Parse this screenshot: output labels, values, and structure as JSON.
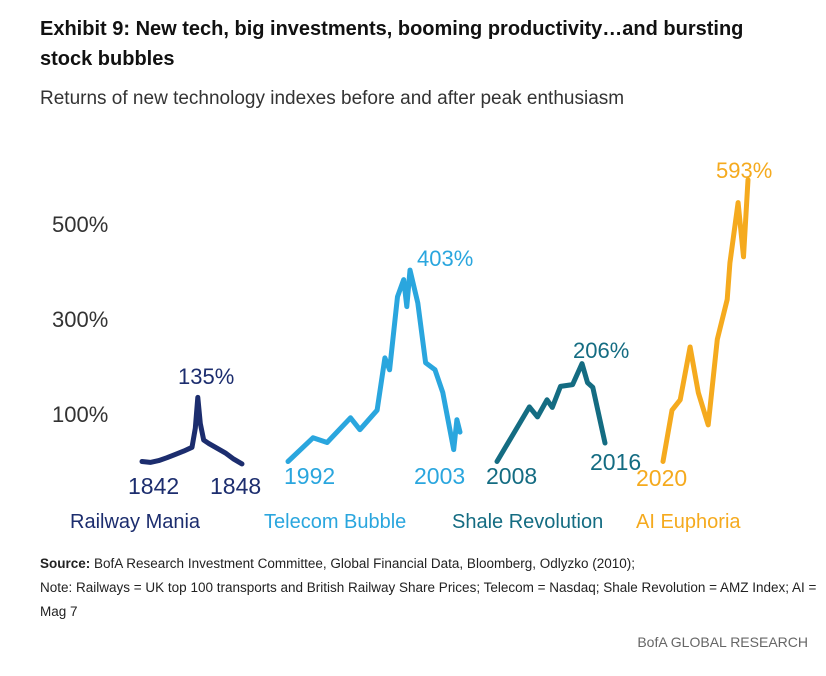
{
  "title": "Exhibit 9: New tech, big investments, booming productivity…and bursting stock bubbles",
  "subtitle": "Returns of new technology indexes before and after peak enthusiasm",
  "chart_data": {
    "type": "line",
    "title": "",
    "xlabel": "",
    "ylabel": "",
    "ylim": [
      0,
      600
    ],
    "yticks": [
      "100%",
      "300%",
      "500%"
    ],
    "ytick_values": [
      100,
      300,
      500
    ],
    "grid": false,
    "series": [
      {
        "name": "Railway Mania",
        "color": "#1c2d6e",
        "start_label": "1842",
        "end_label": "1848",
        "peak_label": "135%",
        "points": [
          [
            1842,
            0
          ],
          [
            1842.5,
            -2
          ],
          [
            1843,
            2
          ],
          [
            1843.5,
            8
          ],
          [
            1844,
            15
          ],
          [
            1844.5,
            22
          ],
          [
            1845,
            30
          ],
          [
            1845.2,
            70
          ],
          [
            1845.35,
            135
          ],
          [
            1845.5,
            80
          ],
          [
            1845.7,
            45
          ],
          [
            1846,
            38
          ],
          [
            1846.5,
            28
          ],
          [
            1847,
            18
          ],
          [
            1847.5,
            5
          ],
          [
            1848,
            -5
          ]
        ]
      },
      {
        "name": "Telecom Bubble",
        "color": "#2aa6de",
        "start_label": "1992",
        "end_label": "2003",
        "peak_label": "403%",
        "points": [
          [
            1992,
            0
          ],
          [
            1993.6,
            50
          ],
          [
            1994.5,
            40
          ],
          [
            1996,
            92
          ],
          [
            1996.6,
            67
          ],
          [
            1997.7,
            108
          ],
          [
            1998.2,
            218
          ],
          [
            1998.5,
            193
          ],
          [
            1999,
            347
          ],
          [
            1999.4,
            383
          ],
          [
            1999.6,
            326
          ],
          [
            1999.8,
            403
          ],
          [
            2000.3,
            334
          ],
          [
            2000.8,
            208
          ],
          [
            2001.4,
            193
          ],
          [
            2001.9,
            145
          ],
          [
            2002.6,
            25
          ],
          [
            2002.8,
            88
          ],
          [
            2003,
            62
          ]
        ]
      },
      {
        "name": "Shale Revolution",
        "color": "#146c82",
        "start_label": "2008",
        "end_label": "2016",
        "peak_label": "206%",
        "points": [
          [
            2008,
            0
          ],
          [
            2010.4,
            115
          ],
          [
            2011,
            94
          ],
          [
            2011.7,
            130
          ],
          [
            2012.1,
            114
          ],
          [
            2012.7,
            158
          ],
          [
            2013.6,
            162
          ],
          [
            2014.3,
            206
          ],
          [
            2014.7,
            166
          ],
          [
            2015.1,
            156
          ],
          [
            2016,
            39
          ]
        ]
      },
      {
        "name": "AI Euphoria",
        "color": "#f5aa1e",
        "start_label": "2020",
        "end_label": "",
        "peak_label": "593%",
        "points": [
          [
            2020,
            0
          ],
          [
            2020.5,
            108
          ],
          [
            2020.95,
            130
          ],
          [
            2021.5,
            241
          ],
          [
            2021.95,
            145
          ],
          [
            2022.5,
            77
          ],
          [
            2023,
            257
          ],
          [
            2023.55,
            341
          ],
          [
            2023.7,
            418
          ],
          [
            2024.15,
            545
          ],
          [
            2024.45,
            431
          ],
          [
            2024.7,
            593
          ]
        ]
      }
    ]
  },
  "notes": {
    "source_label": "Source:",
    "source_text": " BofA Research Investment Committee, Global Financial Data, Bloomberg, Odlyzko (2010);",
    "note_text": "Note: Railways = UK top 100 transports and British Railway Share Prices; Telecom = Nasdaq; Shale Revolution = AMZ Index; AI = Mag 7"
  },
  "brand": "BofA GLOBAL RESEARCH"
}
